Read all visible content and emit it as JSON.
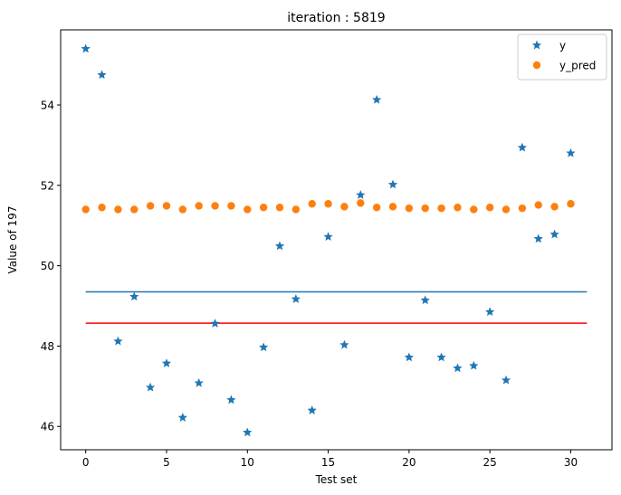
{
  "chart_data": {
    "type": "scatter",
    "title": "iteration : 5819",
    "xlabel": "Test set",
    "ylabel": "Value of 197",
    "xlim": [
      -1.55,
      32.55
    ],
    "ylim": [
      45.42,
      55.87
    ],
    "xticks": [
      0,
      5,
      10,
      15,
      20,
      25,
      30
    ],
    "yticks": [
      46,
      48,
      50,
      52,
      54
    ],
    "grid": false,
    "legend_position": "top-right",
    "series": [
      {
        "name": "y",
        "marker": "star",
        "color": "#1f77b4",
        "x": [
          0,
          1,
          2,
          3,
          4,
          5,
          6,
          7,
          8,
          9,
          10,
          11,
          12,
          13,
          14,
          15,
          16,
          17,
          18,
          19,
          20,
          21,
          22,
          23,
          24,
          25,
          26,
          27,
          28,
          29,
          30
        ],
        "values": [
          55.4,
          54.75,
          48.12,
          49.23,
          46.97,
          47.57,
          46.22,
          47.08,
          48.56,
          46.66,
          45.85,
          47.97,
          50.49,
          49.17,
          46.4,
          50.72,
          48.03,
          51.76,
          54.13,
          52.02,
          47.72,
          49.14,
          47.72,
          47.45,
          47.51,
          48.85,
          47.15,
          52.94,
          50.67,
          50.78,
          52.8
        ]
      },
      {
        "name": "y_pred",
        "marker": "circle",
        "color": "#ff7f0e",
        "x": [
          0,
          1,
          2,
          3,
          4,
          5,
          6,
          7,
          8,
          9,
          10,
          11,
          12,
          13,
          14,
          15,
          16,
          17,
          18,
          19,
          20,
          21,
          22,
          23,
          24,
          25,
          26,
          27,
          28,
          29,
          30
        ],
        "values": [
          51.4,
          51.45,
          51.4,
          51.4,
          51.49,
          51.49,
          51.4,
          51.49,
          51.49,
          51.49,
          51.4,
          51.45,
          51.45,
          51.4,
          51.54,
          51.54,
          51.47,
          51.56,
          51.45,
          51.47,
          51.43,
          51.43,
          51.43,
          51.45,
          51.4,
          51.45,
          51.4,
          51.43,
          51.51,
          51.47,
          51.54
        ]
      }
    ],
    "lines": [
      {
        "color": "#1f77b4",
        "y": 49.35,
        "x": [
          0,
          31
        ]
      },
      {
        "color": "#ff0000",
        "y": 48.57,
        "x": [
          0,
          31
        ]
      }
    ]
  }
}
